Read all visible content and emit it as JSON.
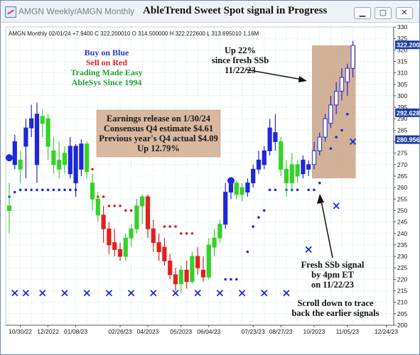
{
  "window": {
    "subtitle": "AMGN  Weekly/AMGN  Monthly",
    "title": "AbleTrend Sweet Spot signal in Progress",
    "min_glyph": "▁",
    "max_glyph": "▢",
    "close_glyph": "✕"
  },
  "chart_data": {
    "type": "candlestick",
    "title": "",
    "header": "AMGN  Monthly 02/01/24 +7.9400  C 322.200010  O 314.500000  H 322.222600  L 313.695010  1.16M",
    "ylim": [
      200,
      330
    ],
    "y_ticks": [
      200,
      205,
      210,
      215,
      220,
      225,
      230,
      235,
      240,
      245,
      250,
      255,
      260,
      265,
      270,
      275,
      280,
      285,
      290,
      295,
      300,
      305,
      310,
      315,
      320,
      325,
      330
    ],
    "x_tick_labels": [
      {
        "i": 2,
        "label": "10/30/22"
      },
      {
        "i": 7,
        "label": "12/2022"
      },
      {
        "i": 12,
        "label": "01/08/23"
      },
      {
        "i": 20,
        "label": "02/26/23"
      },
      {
        "i": 25,
        "label": "04/2023"
      },
      {
        "i": 31,
        "label": "05/2023"
      },
      {
        "i": 36,
        "label": "06/04/23"
      },
      {
        "i": 44,
        "label": "07/23/23"
      },
      {
        "i": 49,
        "label": "08/27/23"
      },
      {
        "i": 55,
        "label": "10/2023"
      },
      {
        "i": 61,
        "label": "11/05/23"
      },
      {
        "i": 68,
        "label": "12/24/23"
      }
    ],
    "price_boxes": [
      {
        "value": 322.2,
        "label": "322.200",
        "bg": "#1b3fa3",
        "fg": "#ffffff"
      },
      {
        "value": 292.6,
        "label": "292.628",
        "bg": "#1b3fa3",
        "fg": "#ffffff"
      },
      {
        "value": 280.9,
        "label": "280.956",
        "bg": "#1b3fa3",
        "fg": "#ffffff"
      }
    ],
    "candles": [
      {
        "o": 252,
        "h": 262,
        "l": 240,
        "c": 250,
        "col": "green"
      },
      {
        "o": 270,
        "h": 283,
        "l": 268,
        "c": 280,
        "col": "blue"
      },
      {
        "o": 272,
        "h": 276,
        "l": 262,
        "c": 268,
        "col": "green"
      },
      {
        "o": 278,
        "h": 290,
        "l": 264,
        "c": 286,
        "col": "blue"
      },
      {
        "o": 286,
        "h": 296,
        "l": 282,
        "c": 290,
        "col": "blue"
      },
      {
        "o": 270,
        "h": 297,
        "l": 262,
        "c": 292,
        "col": "blue"
      },
      {
        "o": 288,
        "h": 294,
        "l": 282,
        "c": 291,
        "col": "green"
      },
      {
        "o": 290,
        "h": 292,
        "l": 272,
        "c": 278,
        "col": "green"
      },
      {
        "o": 276,
        "h": 282,
        "l": 266,
        "c": 270,
        "col": "green"
      },
      {
        "o": 272,
        "h": 280,
        "l": 264,
        "c": 268,
        "col": "green"
      },
      {
        "o": 270,
        "h": 278,
        "l": 266,
        "c": 275,
        "col": "green"
      },
      {
        "o": 266,
        "h": 282,
        "l": 264,
        "c": 278,
        "col": "blue"
      },
      {
        "o": 278,
        "h": 279,
        "l": 256,
        "c": 262,
        "col": "blue"
      },
      {
        "o": 268,
        "h": 281,
        "l": 265,
        "c": 279,
        "col": "blue"
      },
      {
        "o": 279,
        "h": 280,
        "l": 264,
        "c": 267,
        "col": "green"
      },
      {
        "o": 262,
        "h": 266,
        "l": 250,
        "c": 255,
        "col": "green"
      },
      {
        "o": 255,
        "h": 258,
        "l": 245,
        "c": 248,
        "col": "green"
      },
      {
        "o": 248,
        "h": 252,
        "l": 236,
        "c": 242,
        "col": "red"
      },
      {
        "o": 242,
        "h": 245,
        "l": 231,
        "c": 235,
        "col": "red"
      },
      {
        "o": 236,
        "h": 242,
        "l": 230,
        "c": 233,
        "col": "red"
      },
      {
        "o": 233,
        "h": 236,
        "l": 228,
        "c": 230,
        "col": "red"
      },
      {
        "o": 230,
        "h": 240,
        "l": 228,
        "c": 238,
        "col": "green"
      },
      {
        "o": 238,
        "h": 244,
        "l": 234,
        "c": 242,
        "col": "green"
      },
      {
        "o": 242,
        "h": 255,
        "l": 240,
        "c": 252,
        "col": "green"
      },
      {
        "o": 252,
        "h": 257,
        "l": 244,
        "c": 256,
        "col": "green"
      },
      {
        "o": 256,
        "h": 257,
        "l": 238,
        "c": 242,
        "col": "red"
      },
      {
        "o": 242,
        "h": 246,
        "l": 232,
        "c": 236,
        "col": "red"
      },
      {
        "o": 236,
        "h": 240,
        "l": 228,
        "c": 232,
        "col": "red"
      },
      {
        "o": 234,
        "h": 238,
        "l": 226,
        "c": 228,
        "col": "red"
      },
      {
        "o": 228,
        "h": 231,
        "l": 220,
        "c": 222,
        "col": "red"
      },
      {
        "o": 222,
        "h": 225,
        "l": 215,
        "c": 218,
        "col": "red"
      },
      {
        "o": 218,
        "h": 226,
        "l": 214,
        "c": 224,
        "col": "green"
      },
      {
        "o": 224,
        "h": 228,
        "l": 216,
        "c": 219,
        "col": "red"
      },
      {
        "o": 219,
        "h": 232,
        "l": 218,
        "c": 230,
        "col": "green"
      },
      {
        "o": 230,
        "h": 234,
        "l": 222,
        "c": 225,
        "col": "red"
      },
      {
        "o": 224,
        "h": 230,
        "l": 219,
        "c": 221,
        "col": "red"
      },
      {
        "o": 221,
        "h": 238,
        "l": 220,
        "c": 235,
        "col": "green"
      },
      {
        "o": 234,
        "h": 242,
        "l": 230,
        "c": 238,
        "col": "green"
      },
      {
        "o": 238,
        "h": 246,
        "l": 236,
        "c": 244,
        "col": "green"
      },
      {
        "o": 244,
        "h": 262,
        "l": 242,
        "c": 258,
        "col": "blue"
      },
      {
        "o": 258,
        "h": 264,
        "l": 255,
        "c": 262,
        "col": "blue"
      },
      {
        "o": 262,
        "h": 263,
        "l": 255,
        "c": 257,
        "col": "green"
      },
      {
        "o": 257,
        "h": 262,
        "l": 254,
        "c": 260,
        "col": "green"
      },
      {
        "o": 258,
        "h": 264,
        "l": 256,
        "c": 262,
        "col": "blue"
      },
      {
        "o": 262,
        "h": 270,
        "l": 260,
        "c": 268,
        "col": "blue"
      },
      {
        "o": 268,
        "h": 276,
        "l": 266,
        "c": 272,
        "col": "blue"
      },
      {
        "o": 270,
        "h": 278,
        "l": 268,
        "c": 276,
        "col": "blue"
      },
      {
        "o": 276,
        "h": 290,
        "l": 274,
        "c": 286,
        "col": "blue"
      },
      {
        "o": 284,
        "h": 292,
        "l": 276,
        "c": 280,
        "col": "blue"
      },
      {
        "o": 280,
        "h": 282,
        "l": 265,
        "c": 268,
        "col": "green"
      },
      {
        "o": 268,
        "h": 272,
        "l": 256,
        "c": 262,
        "col": "green"
      },
      {
        "o": 262,
        "h": 275,
        "l": 258,
        "c": 270,
        "col": "green"
      },
      {
        "o": 270,
        "h": 272,
        "l": 262,
        "c": 265,
        "col": "green"
      },
      {
        "o": 266,
        "h": 274,
        "l": 264,
        "c": 272,
        "col": "blue"
      },
      {
        "o": 268,
        "h": 272,
        "l": 265,
        "c": 270,
        "col": "blue"
      },
      {
        "o": 270,
        "h": 280,
        "l": 268,
        "c": 276,
        "col": "blue"
      },
      {
        "o": 276,
        "h": 284,
        "l": 274,
        "c": 282,
        "col": "blue"
      },
      {
        "o": 282,
        "h": 292,
        "l": 280,
        "c": 290,
        "col": "blue"
      },
      {
        "o": 288,
        "h": 300,
        "l": 286,
        "c": 296,
        "col": "blue"
      },
      {
        "o": 296,
        "h": 306,
        "l": 292,
        "c": 302,
        "col": "blue"
      },
      {
        "o": 302,
        "h": 312,
        "l": 298,
        "c": 308,
        "col": "blue"
      },
      {
        "o": 306,
        "h": 314,
        "l": 300,
        "c": 312,
        "col": "blue"
      },
      {
        "o": 312,
        "h": 324,
        "l": 308,
        "c": 322,
        "col": "blue"
      }
    ],
    "dots": [
      {
        "i": 0,
        "v": 256,
        "col": "blue"
      },
      {
        "i": 1,
        "v": 258,
        "col": "blue"
      },
      {
        "i": 2,
        "v": 259,
        "col": "blue"
      },
      {
        "i": 3,
        "v": 259,
        "col": "blue"
      },
      {
        "i": 4,
        "v": 259,
        "col": "blue"
      },
      {
        "i": 5,
        "v": 259,
        "col": "blue"
      },
      {
        "i": 6,
        "v": 259,
        "col": "blue"
      },
      {
        "i": 7,
        "v": 259,
        "col": "blue"
      },
      {
        "i": 8,
        "v": 259,
        "col": "blue"
      },
      {
        "i": 9,
        "v": 259,
        "col": "blue"
      },
      {
        "i": 10,
        "v": 259,
        "col": "blue"
      },
      {
        "i": 11,
        "v": 259,
        "col": "blue"
      },
      {
        "i": 12,
        "v": 259,
        "col": "blue"
      },
      {
        "i": 14,
        "v": 268,
        "col": "red"
      },
      {
        "i": 15,
        "v": 268,
        "col": "red"
      },
      {
        "i": 16,
        "v": 256,
        "col": "red"
      },
      {
        "i": 17,
        "v": 256,
        "col": "red"
      },
      {
        "i": 18,
        "v": 252,
        "col": "red"
      },
      {
        "i": 19,
        "v": 252,
        "col": "red"
      },
      {
        "i": 20,
        "v": 252,
        "col": "red"
      },
      {
        "i": 21,
        "v": 250,
        "col": "red"
      },
      {
        "i": 22,
        "v": 250,
        "col": "red"
      },
      {
        "i": 28,
        "v": 243,
        "col": "red"
      },
      {
        "i": 29,
        "v": 243,
        "col": "red"
      },
      {
        "i": 30,
        "v": 243,
        "col": "red"
      },
      {
        "i": 31,
        "v": 240,
        "col": "red"
      },
      {
        "i": 32,
        "v": 240,
        "col": "red"
      },
      {
        "i": 33,
        "v": 240,
        "col": "red"
      },
      {
        "i": 39,
        "v": 220,
        "col": "blue"
      },
      {
        "i": 40,
        "v": 220,
        "col": "blue"
      },
      {
        "i": 41,
        "v": 220,
        "col": "blue"
      },
      {
        "i": 43,
        "v": 232,
        "col": "blue"
      },
      {
        "i": 44,
        "v": 243,
        "col": "blue"
      },
      {
        "i": 45,
        "v": 247,
        "col": "blue"
      },
      {
        "i": 46,
        "v": 250,
        "col": "blue"
      },
      {
        "i": 47,
        "v": 259,
        "col": "blue"
      },
      {
        "i": 48,
        "v": 259,
        "col": "blue"
      },
      {
        "i": 50,
        "v": 259,
        "col": "blue"
      },
      {
        "i": 51,
        "v": 259,
        "col": "blue"
      },
      {
        "i": 52,
        "v": 259,
        "col": "blue"
      },
      {
        "i": 54,
        "v": 259,
        "col": "blue"
      },
      {
        "i": 55,
        "v": 259,
        "col": "blue"
      },
      {
        "i": 56,
        "v": 262,
        "col": "blue"
      },
      {
        "i": 58,
        "v": 277,
        "col": "blue"
      },
      {
        "i": 59,
        "v": 282,
        "col": "blue"
      },
      {
        "i": 60,
        "v": 285,
        "col": "blue"
      },
      {
        "i": 61,
        "v": 292,
        "col": "blue"
      }
    ],
    "x_marks": [
      {
        "i": 1,
        "v": 214
      },
      {
        "i": 3,
        "v": 214
      },
      {
        "i": 6,
        "v": 214
      },
      {
        "i": 10,
        "v": 214
      },
      {
        "i": 14,
        "v": 214
      },
      {
        "i": 18,
        "v": 214
      },
      {
        "i": 22,
        "v": 214
      },
      {
        "i": 26,
        "v": 214
      },
      {
        "i": 30,
        "v": 214
      },
      {
        "i": 34,
        "v": 214
      },
      {
        "i": 38,
        "v": 214
      },
      {
        "i": 42,
        "v": 214
      },
      {
        "i": 46,
        "v": 214
      },
      {
        "i": 50,
        "v": 214
      },
      {
        "i": 54,
        "v": 233
      },
      {
        "i": 59,
        "v": 252
      },
      {
        "i": 62,
        "v": 280
      }
    ],
    "big_dots": [
      {
        "i": 0,
        "v": 273
      },
      {
        "i": 40,
        "v": 263
      }
    ]
  },
  "legend_lines": [
    {
      "text": "Buy on Blue",
      "color": "#1f3bd1"
    },
    {
      "text": "Sell on Red",
      "color": "#e0201e"
    },
    {
      "text": "Trading Made Easy",
      "color": "#1f9e2d"
    },
    {
      "text": "AbleSys Since 1994",
      "color": "#1f9e2d"
    }
  ],
  "earnings_lines": [
    "Earnings release on 1/30/24",
    "Consensus Q4 estimate $4.61",
    "Previous year's Q4 actual $4.09",
    "Up 12.79%"
  ],
  "annotations": {
    "up_text": [
      "Up 22%",
      "since fresh SSb",
      "11/22/23"
    ],
    "fresh_text": [
      "Fresh SSb signal",
      "by 4pm ET",
      "on 11/22/23"
    ],
    "scroll_text": [
      "Scroll down to trace",
      "back the earlier signals"
    ]
  },
  "colors": {
    "blue": "#1f27d8",
    "red": "#e0201e",
    "green": "#35d12a",
    "grid": "#bfe7f0",
    "shade": "#c9a385",
    "earnings_bg": "#d9b8a0"
  }
}
